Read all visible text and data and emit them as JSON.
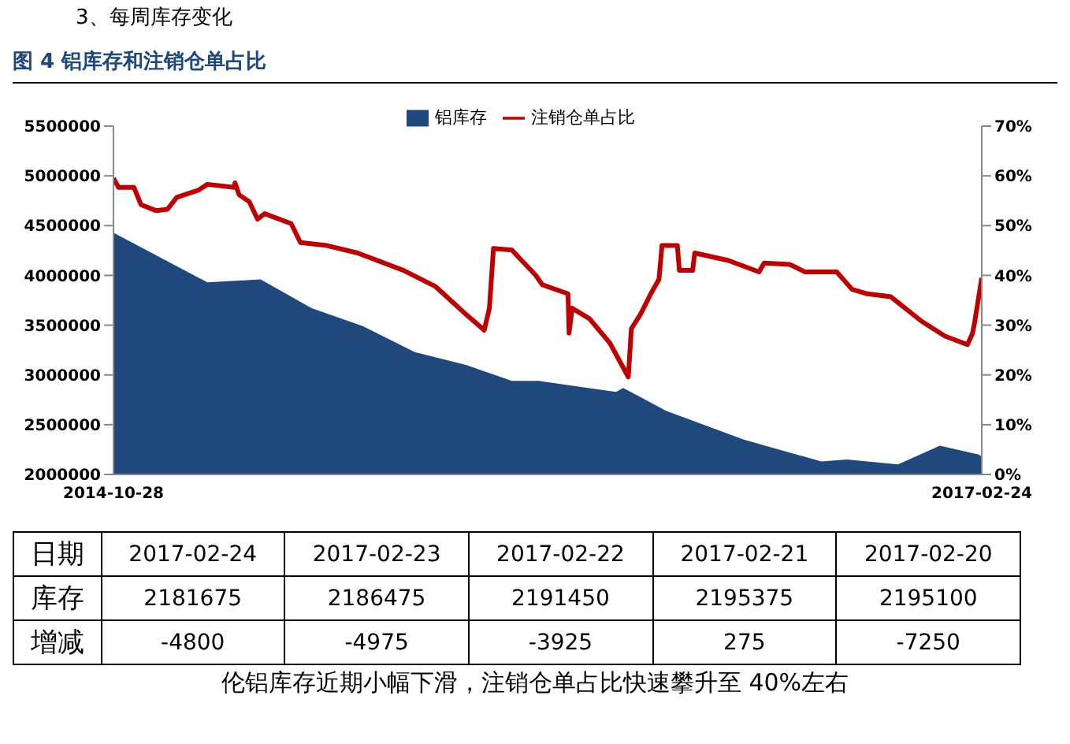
{
  "chart_data": {
    "type": "area",
    "title": "3、每周库存变化",
    "subtitle": "图 4 铝库存和注销仓单占比",
    "xlim": [
      "2014-10-28",
      "2017-02-24"
    ],
    "xticks": [
      "2014-10-28",
      "2017-02-24"
    ],
    "ylim": [
      2000000,
      5500000
    ],
    "yticks": [
      2000000,
      2500000,
      3000000,
      3500000,
      4000000,
      4500000,
      5000000,
      5500000
    ],
    "y2lim": [
      0,
      70
    ],
    "y2ticks": [
      {
        "value": 0,
        "label": "0%"
      },
      {
        "value": 10,
        "label": "10%"
      },
      {
        "value": 20,
        "label": "20%"
      },
      {
        "value": 30,
        "label": "30%"
      },
      {
        "value": 40,
        "label": "40%"
      },
      {
        "value": 50,
        "label": "50%"
      },
      {
        "value": 60,
        "label": "60%"
      },
      {
        "value": 70,
        "label": "70%"
      }
    ],
    "grid": false,
    "legend": "top",
    "marker": "none",
    "line_style": "solid",
    "series": [
      {
        "name": "铝库存",
        "color": "#1f497d",
        "x": [
          "2014-10-28",
          "2015-01-28",
          "2015-03-21",
          "2015-05-10",
          "2015-06-29",
          "2015-08-19",
          "2015-10-08",
          "2015-11-22",
          "2015-12-18",
          "2016-03-03",
          "2016-03-10",
          "2016-04-21",
          "2016-07-06",
          "2016-09-20",
          "2016-10-15",
          "2016-12-04",
          "2017-01-14",
          "2017-02-21",
          "2017-02-24"
        ],
        "values": [
          4430000,
          3930000,
          3960000,
          3670000,
          3490000,
          3230000,
          3100000,
          2940000,
          2940000,
          2830000,
          2870000,
          2640000,
          2350000,
          2130000,
          2150000,
          2100000,
          2290000,
          2200000,
          2180000
        ]
      },
      {
        "name": "注销仓单占比",
        "type": "line",
        "axis": "y2",
        "color": "#c00000",
        "x": [
          "2014-10-28",
          "2014-11-02",
          "2014-11-17",
          "2014-11-24",
          "2014-12-09",
          "2014-12-20",
          "2014-12-29",
          "2015-01-19",
          "2015-01-28",
          "2015-02-23",
          "2015-02-24",
          "2015-02-28",
          "2015-03-10",
          "2015-03-18",
          "2015-03-25",
          "2015-04-20",
          "2015-04-29",
          "2015-05-25",
          "2015-06-24",
          "2015-08-08",
          "2015-09-08",
          "2015-10-08",
          "2015-10-26",
          "2015-10-31",
          "2015-11-04",
          "2015-11-22",
          "2015-12-15",
          "2015-12-22",
          "2016-01-16",
          "2016-01-17",
          "2016-01-20",
          "2016-02-06",
          "2016-02-26",
          "2016-03-07",
          "2016-03-15",
          "2016-03-18",
          "2016-03-27",
          "2016-04-06",
          "2016-04-14",
          "2016-04-17",
          "2016-05-02",
          "2016-05-04",
          "2016-05-17",
          "2016-05-19",
          "2016-06-21",
          "2016-07-21",
          "2016-07-26",
          "2016-08-20",
          "2016-09-04",
          "2016-10-05",
          "2016-10-20",
          "2016-11-04",
          "2016-11-27",
          "2016-12-27",
          "2017-01-19",
          "2017-02-10",
          "2017-02-15",
          "2017-02-17",
          "2017-02-24"
        ],
        "values": [
          59.5,
          57.7,
          57.7,
          54.2,
          53,
          53.3,
          55.7,
          57.1,
          58.3,
          57.7,
          58.6,
          56.2,
          54.8,
          51.3,
          52.4,
          50.4,
          46.6,
          46,
          44.5,
          41,
          37.8,
          32.2,
          29,
          33.4,
          45.4,
          45.1,
          40.1,
          38.1,
          36.3,
          28.4,
          33.4,
          31.3,
          26.4,
          22.6,
          19.6,
          29.3,
          32.2,
          36.3,
          39.2,
          46,
          46,
          41,
          41,
          44.5,
          43,
          40.7,
          42.5,
          42.2,
          40.7,
          40.7,
          37.2,
          36.3,
          35.7,
          30.8,
          27.8,
          26.1,
          28.4,
          30.5,
          39.5
        ]
      }
    ],
    "annotations": [
      "日期",
      "2017-02-24",
      "2017-02-23",
      "2017-02-22",
      "2017-02-21",
      "2017-02-20",
      "库存",
      "2181675",
      "2186475",
      "2191450",
      "2195375",
      "2195100",
      "增减",
      "-4800",
      "-4975",
      "-3925",
      "275",
      "-7250",
      "伦铝库存近期小幅下滑，注销仓单占比快速攀升至 40%左右"
    ]
  }
}
